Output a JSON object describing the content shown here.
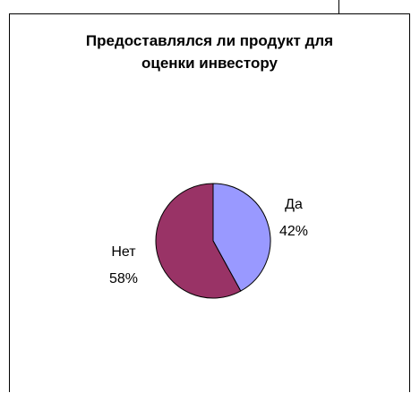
{
  "chart_data": {
    "type": "pie",
    "title_lines": [
      "Предоставлялся ли продукт для",
      "оценки инвестору"
    ],
    "slices": [
      {
        "label": "Да",
        "value": 42,
        "value_label": "42%",
        "color": "#9999ff"
      },
      {
        "label": "Нет",
        "value": 58,
        "value_label": "58%",
        "color": "#993366"
      }
    ],
    "start_angle_deg": 0,
    "direction": "clockwise",
    "legend": "none"
  }
}
